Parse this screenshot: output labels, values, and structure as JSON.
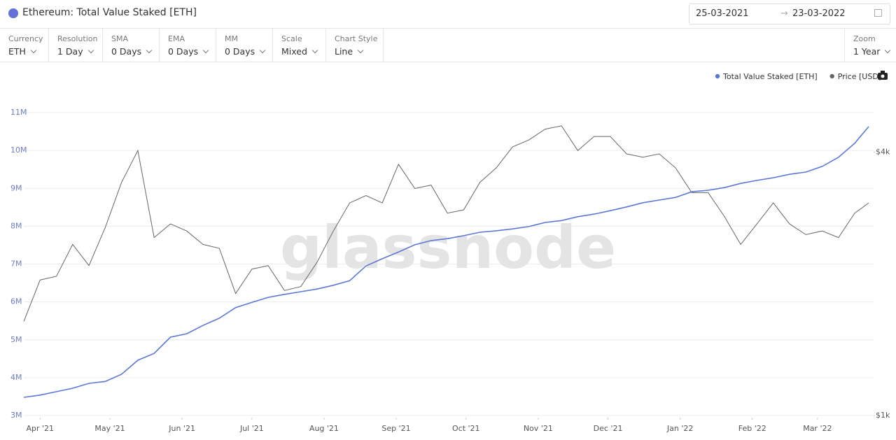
{
  "header": {
    "date_start": "25-03-2021",
    "date_end": "23-03-2022"
  },
  "toolbar": [
    {
      "label": "Currency",
      "value": "ETH"
    },
    {
      "label": "Resolution",
      "value": "1 Day"
    },
    {
      "label": "SMA",
      "value": "0 Days"
    },
    {
      "label": "EMA",
      "value": "0 Days"
    },
    {
      "label": "MM",
      "value": "0 Days"
    },
    {
      "label": "Scale",
      "value": "Mixed"
    },
    {
      "label": "Chart Style",
      "value": "Line"
    }
  ],
  "zoom": {
    "label": "Zoom",
    "value": "1 Year"
  },
  "watermark": "glassnode",
  "chart_data": {
    "type": "line",
    "title": "Ethereum: Total Value Staked [ETH]",
    "x": [
      "2021-03-25",
      "2021-04-01",
      "2021-04-08",
      "2021-04-15",
      "2021-04-22",
      "2021-04-29",
      "2021-05-06",
      "2021-05-13",
      "2021-05-20",
      "2021-05-27",
      "2021-06-03",
      "2021-06-10",
      "2021-06-17",
      "2021-06-24",
      "2021-07-01",
      "2021-07-08",
      "2021-07-15",
      "2021-07-22",
      "2021-07-29",
      "2021-08-05",
      "2021-08-12",
      "2021-08-19",
      "2021-08-26",
      "2021-09-02",
      "2021-09-09",
      "2021-09-16",
      "2021-09-23",
      "2021-09-30",
      "2021-10-07",
      "2021-10-14",
      "2021-10-21",
      "2021-10-28",
      "2021-11-04",
      "2021-11-11",
      "2021-11-18",
      "2021-11-25",
      "2021-12-02",
      "2021-12-09",
      "2021-12-16",
      "2021-12-23",
      "2021-12-30",
      "2022-01-06",
      "2022-01-13",
      "2022-01-20",
      "2022-01-27",
      "2022-02-03",
      "2022-02-10",
      "2022-02-17",
      "2022-02-24",
      "2022-03-03",
      "2022-03-10",
      "2022-03-17",
      "2022-03-23"
    ],
    "series": [
      {
        "name": "Total Value Staked [ETH]",
        "color": "#5b78d8",
        "axis": "y",
        "values": [
          3480000,
          3540000,
          3630000,
          3720000,
          3850000,
          3900000,
          4090000,
          4460000,
          4640000,
          5070000,
          5160000,
          5380000,
          5570000,
          5850000,
          5990000,
          6120000,
          6200000,
          6270000,
          6340000,
          6440000,
          6560000,
          6950000,
          7140000,
          7320000,
          7510000,
          7620000,
          7670000,
          7750000,
          7840000,
          7880000,
          7930000,
          7990000,
          8100000,
          8150000,
          8250000,
          8320000,
          8410000,
          8510000,
          8620000,
          8690000,
          8760000,
          8910000,
          8950000,
          9020000,
          9130000,
          9210000,
          9280000,
          9370000,
          9430000,
          9580000,
          9820000,
          10190000,
          10630000
        ]
      },
      {
        "name": "Price [USD]",
        "color": "#666666",
        "axis": "y2",
        "values": [
          1640,
          2040,
          2080,
          2460,
          2200,
          2690,
          3410,
          4030,
          2550,
          2740,
          2640,
          2460,
          2410,
          1900,
          2160,
          2200,
          1930,
          1970,
          2240,
          2640,
          3060,
          3180,
          3060,
          3750,
          3300,
          3360,
          2900,
          2950,
          3410,
          3680,
          4110,
          4260,
          4510,
          4590,
          4030,
          4340,
          4340,
          3960,
          3890,
          3960,
          3680,
          3230,
          3230,
          2850,
          2460,
          2740,
          3060,
          2740,
          2590,
          2640,
          2550,
          2900,
          3060
        ]
      }
    ],
    "xlim": [
      "2021-03-25",
      "2022-03-23"
    ],
    "xticks": [
      {
        "value": "2021-04-01",
        "label": "Apr '21"
      },
      {
        "value": "2021-05-01",
        "label": "May '21"
      },
      {
        "value": "2021-06-01",
        "label": "Jun '21"
      },
      {
        "value": "2021-07-01",
        "label": "Jul '21"
      },
      {
        "value": "2021-08-01",
        "label": "Aug '21"
      },
      {
        "value": "2021-09-01",
        "label": "Sep '21"
      },
      {
        "value": "2021-10-01",
        "label": "Oct '21"
      },
      {
        "value": "2021-11-01",
        "label": "Nov '21"
      },
      {
        "value": "2021-12-01",
        "label": "Dec '21"
      },
      {
        "value": "2022-01-01",
        "label": "Jan '22"
      },
      {
        "value": "2022-02-01",
        "label": "Feb '22"
      },
      {
        "value": "2022-03-01",
        "label": "Mar '22"
      }
    ],
    "ylim": [
      3000000,
      11000000
    ],
    "yticks": [
      {
        "value": 3000000,
        "label": "3M"
      },
      {
        "value": 4000000,
        "label": "4M"
      },
      {
        "value": 5000000,
        "label": "5M"
      },
      {
        "value": 6000000,
        "label": "6M"
      },
      {
        "value": 7000000,
        "label": "7M"
      },
      {
        "value": 8000000,
        "label": "8M"
      },
      {
        "value": 9000000,
        "label": "9M"
      },
      {
        "value": 10000000,
        "label": "10M"
      },
      {
        "value": 11000000,
        "label": "11M"
      }
    ],
    "y2lim": [
      1000,
      4920
    ],
    "y2ticks": [
      {
        "value": 1000,
        "label": "$1k"
      },
      {
        "value": 4000,
        "label": "$4k"
      }
    ],
    "y2log": true,
    "grid": true,
    "legend": "top-right"
  }
}
